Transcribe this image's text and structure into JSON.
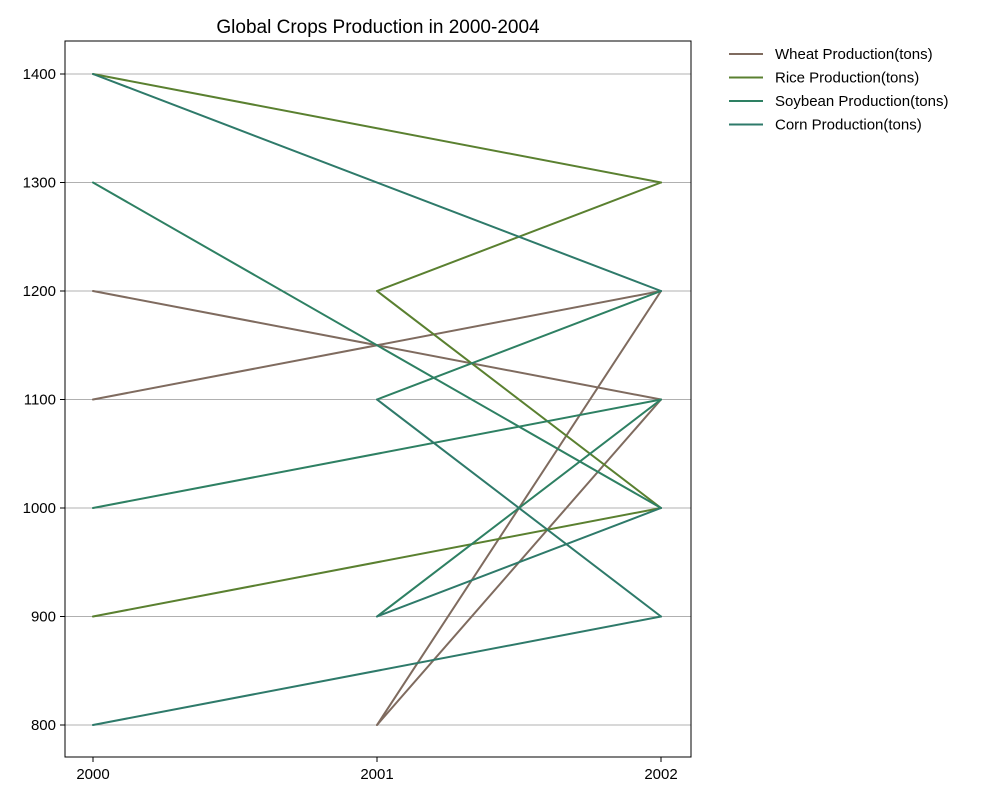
{
  "chart_data": {
    "type": "line",
    "title": "Global Crops Production in 2000-2004",
    "xlabel": "",
    "ylabel": "",
    "x_ticks": [
      "2000",
      "2001",
      "2002"
    ],
    "y_ticks": [
      "800",
      "900",
      "1000",
      "1100",
      "1200",
      "1300",
      "1400"
    ],
    "xlim": [
      1999.9,
      2002.1
    ],
    "ylim": [
      770,
      1430
    ],
    "grid": "horizontal",
    "legend_position": "outside-top-right",
    "colors": {
      "Wheat Production(tons)": "#7f6b5f",
      "Rice Production(tons)": "#5a8030",
      "Soybean Production(tons)": "#2e8063",
      "Corn Production(tons)": "#2e7a6a"
    },
    "series": [
      {
        "name": "Wheat Production(tons)",
        "x": [
          2000,
          2002,
          2001,
          2002
        ],
        "values": [
          1100,
          1200,
          800,
          1100
        ],
        "points_note": "",
        "extra": [
          [
            2000,
            1200,
            2002,
            1100
          ],
          [
            2001,
            800,
            2002,
            1200
          ]
        ]
      },
      {
        "name": "Rice Production(tons)",
        "x": [
          2000,
          2002,
          2001,
          2002
        ],
        "values": [
          1400,
          1300,
          1200,
          1000
        ],
        "extra": [
          [
            2001,
            1200,
            2002,
            1300
          ],
          [
            2000,
            900,
            2002,
            1000
          ]
        ]
      },
      {
        "name": "Soybean Production(tons)",
        "x": [
          2000,
          2002,
          2001,
          2002
        ],
        "values": [
          1000,
          1100,
          1100,
          1200
        ],
        "extra": [
          [
            2001,
            900,
            2002,
            1100
          ],
          [
            2000,
            1300,
            2002,
            1000
          ]
        ]
      },
      {
        "name": "Corn Production(tons)",
        "x": [
          2000,
          2002,
          2001,
          2002
        ],
        "values": [
          1400,
          1200,
          1100,
          900
        ],
        "extra": [
          [
            2000,
            800,
            2002,
            900
          ],
          [
            2001,
            900,
            2002,
            1000
          ]
        ]
      }
    ]
  }
}
